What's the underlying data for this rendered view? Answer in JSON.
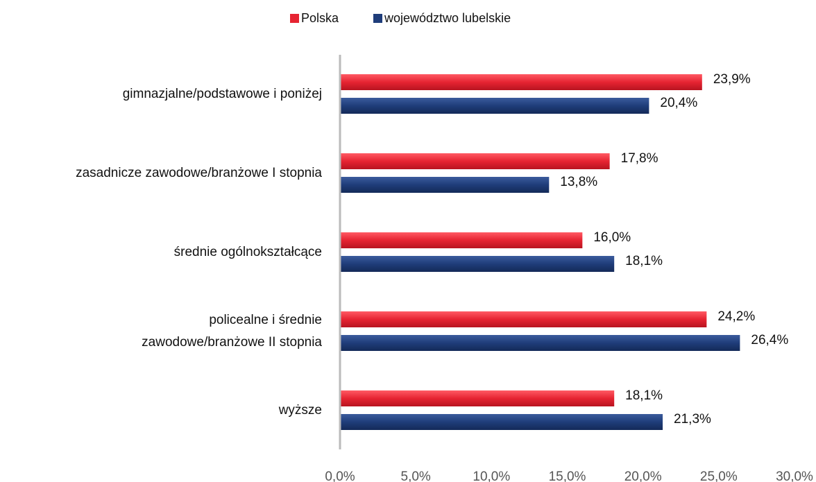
{
  "chart_data": {
    "type": "hbar",
    "categories": [
      "gimnazjalne/podstawowe i poniżej",
      "zasadnicze zawodowe/branżowe I stopnia",
      "średnie ogólnokształcące",
      "policealne i średnie\nzawodowe/branżowe II stopnia",
      "wyższe"
    ],
    "series": [
      {
        "name": "Polska",
        "color": "#e62432",
        "values": [
          23.9,
          17.8,
          16.0,
          24.2,
          18.1
        ],
        "value_labels": [
          "23,9%",
          "17,8%",
          "16,0%",
          "24,2%",
          "18,1%"
        ]
      },
      {
        "name": "województwo lubelskie",
        "color": "#1f3d7a",
        "values": [
          20.4,
          13.8,
          18.1,
          26.4,
          21.3
        ],
        "value_labels": [
          "20,4%",
          "13,8%",
          "18,1%",
          "26,4%",
          "21,3%"
        ]
      }
    ],
    "xlim": [
      0,
      30
    ],
    "xticks": [
      {
        "value": 0,
        "label": "0,0%"
      },
      {
        "value": 5,
        "label": "5,0%"
      },
      {
        "value": 10,
        "label": "10,0%"
      },
      {
        "value": 15,
        "label": "15,0%"
      },
      {
        "value": 20,
        "label": "20,0%"
      },
      {
        "value": 25,
        "label": "25,0%"
      },
      {
        "value": 30,
        "label": "30,0%"
      }
    ],
    "legend": "top"
  }
}
